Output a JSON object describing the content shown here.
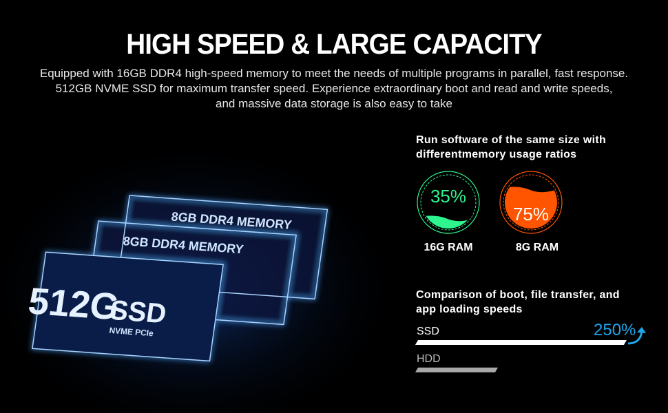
{
  "title": "HIGH SPEED & LARGE CAPACITY",
  "description": [
    "Equipped with 16GB DDR4  high-speed memory to meet the needs of multiple programs in parallel, fast response.",
    "512GB NVME SSD for maximum transfer speed. Experience extraordinary boot and read and write speeds,",
    "and massive data storage is also easy to take"
  ],
  "illustration": {
    "ram1": "8GB DDR4 MEMORY",
    "ram2": "8GB DDR4 MEMORY",
    "ssd": "512G",
    "ssd_word": "SSD",
    "ssd_sub": "NVME PCIe"
  },
  "memory": {
    "heading": [
      "Run software of the same size with",
      "differentmemory usage ratios"
    ],
    "gauges": [
      {
        "value": "35%",
        "fill": 35,
        "label": "16G RAM",
        "color": "#2ef58e"
      },
      {
        "value": "75%",
        "fill": 75,
        "label": "8G RAM",
        "color": "#ff5500"
      }
    ]
  },
  "speed": {
    "heading": [
      "Comparison of boot, file transfer, and",
      "app loading speeds"
    ],
    "bars": [
      {
        "label": "SSD",
        "relative": 100,
        "color": "#ffffff"
      },
      {
        "label": "HDD",
        "relative": 40,
        "color": "#a8a8a8"
      }
    ],
    "increase": "250%",
    "accent": "#1ea6ea",
    "arrow_icon": "arrow-up-curved"
  }
}
